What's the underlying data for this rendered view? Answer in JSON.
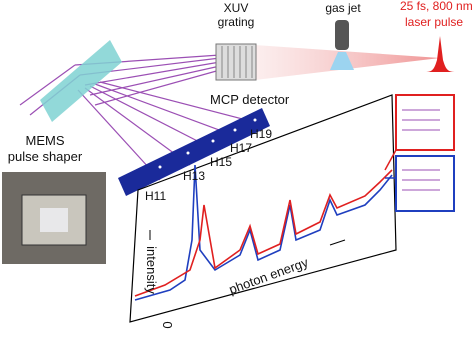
{
  "labels": {
    "grating": [
      "XUV",
      "grating"
    ],
    "gas_jet": "gas jet",
    "laser": [
      "25 fs, 800 nm",
      "laser pulse"
    ],
    "shaper": [
      "MEMS",
      "pulse shaper"
    ],
    "detector": "MCP detector",
    "harmonics": [
      "H19",
      "H17",
      "H15",
      "H13",
      "H11"
    ],
    "plot": {
      "y_label": "intensity",
      "x_label": "photon energy",
      "origin": "0"
    }
  }
}
